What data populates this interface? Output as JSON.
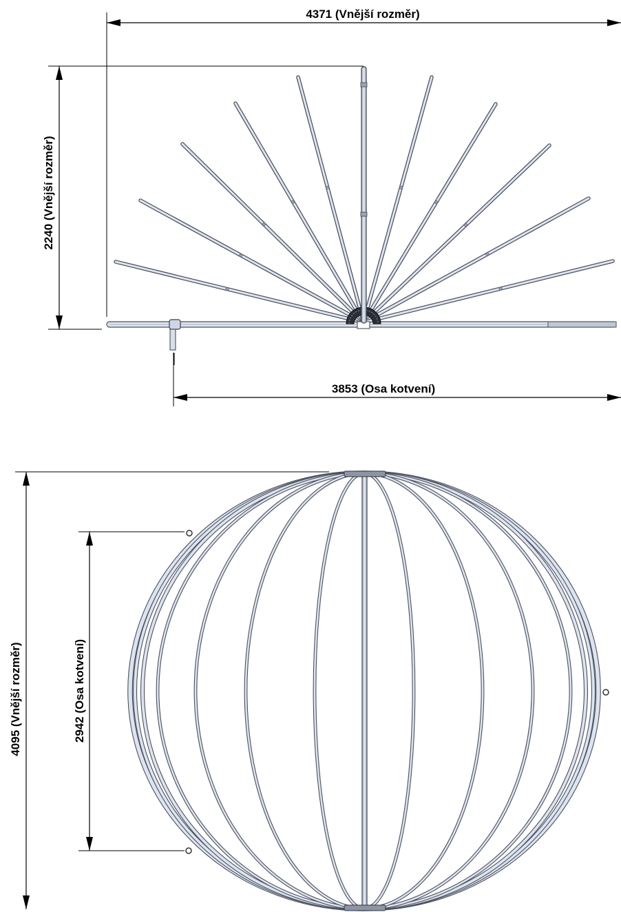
{
  "dimensions": {
    "top_width": "4371 (Vnější rozměr)",
    "top_height": "2240 (Vnější rozměr)",
    "top_anchor": "3853 (Osa kotvení)",
    "bottom_height": "4095 (Vnější rozměr)",
    "bottom_anchor": "2942 (Osa kotvení)"
  },
  "colors": {
    "tube_fill": "#dde4f0",
    "tube_stroke": "#4a4f5c",
    "line": "#000000"
  }
}
